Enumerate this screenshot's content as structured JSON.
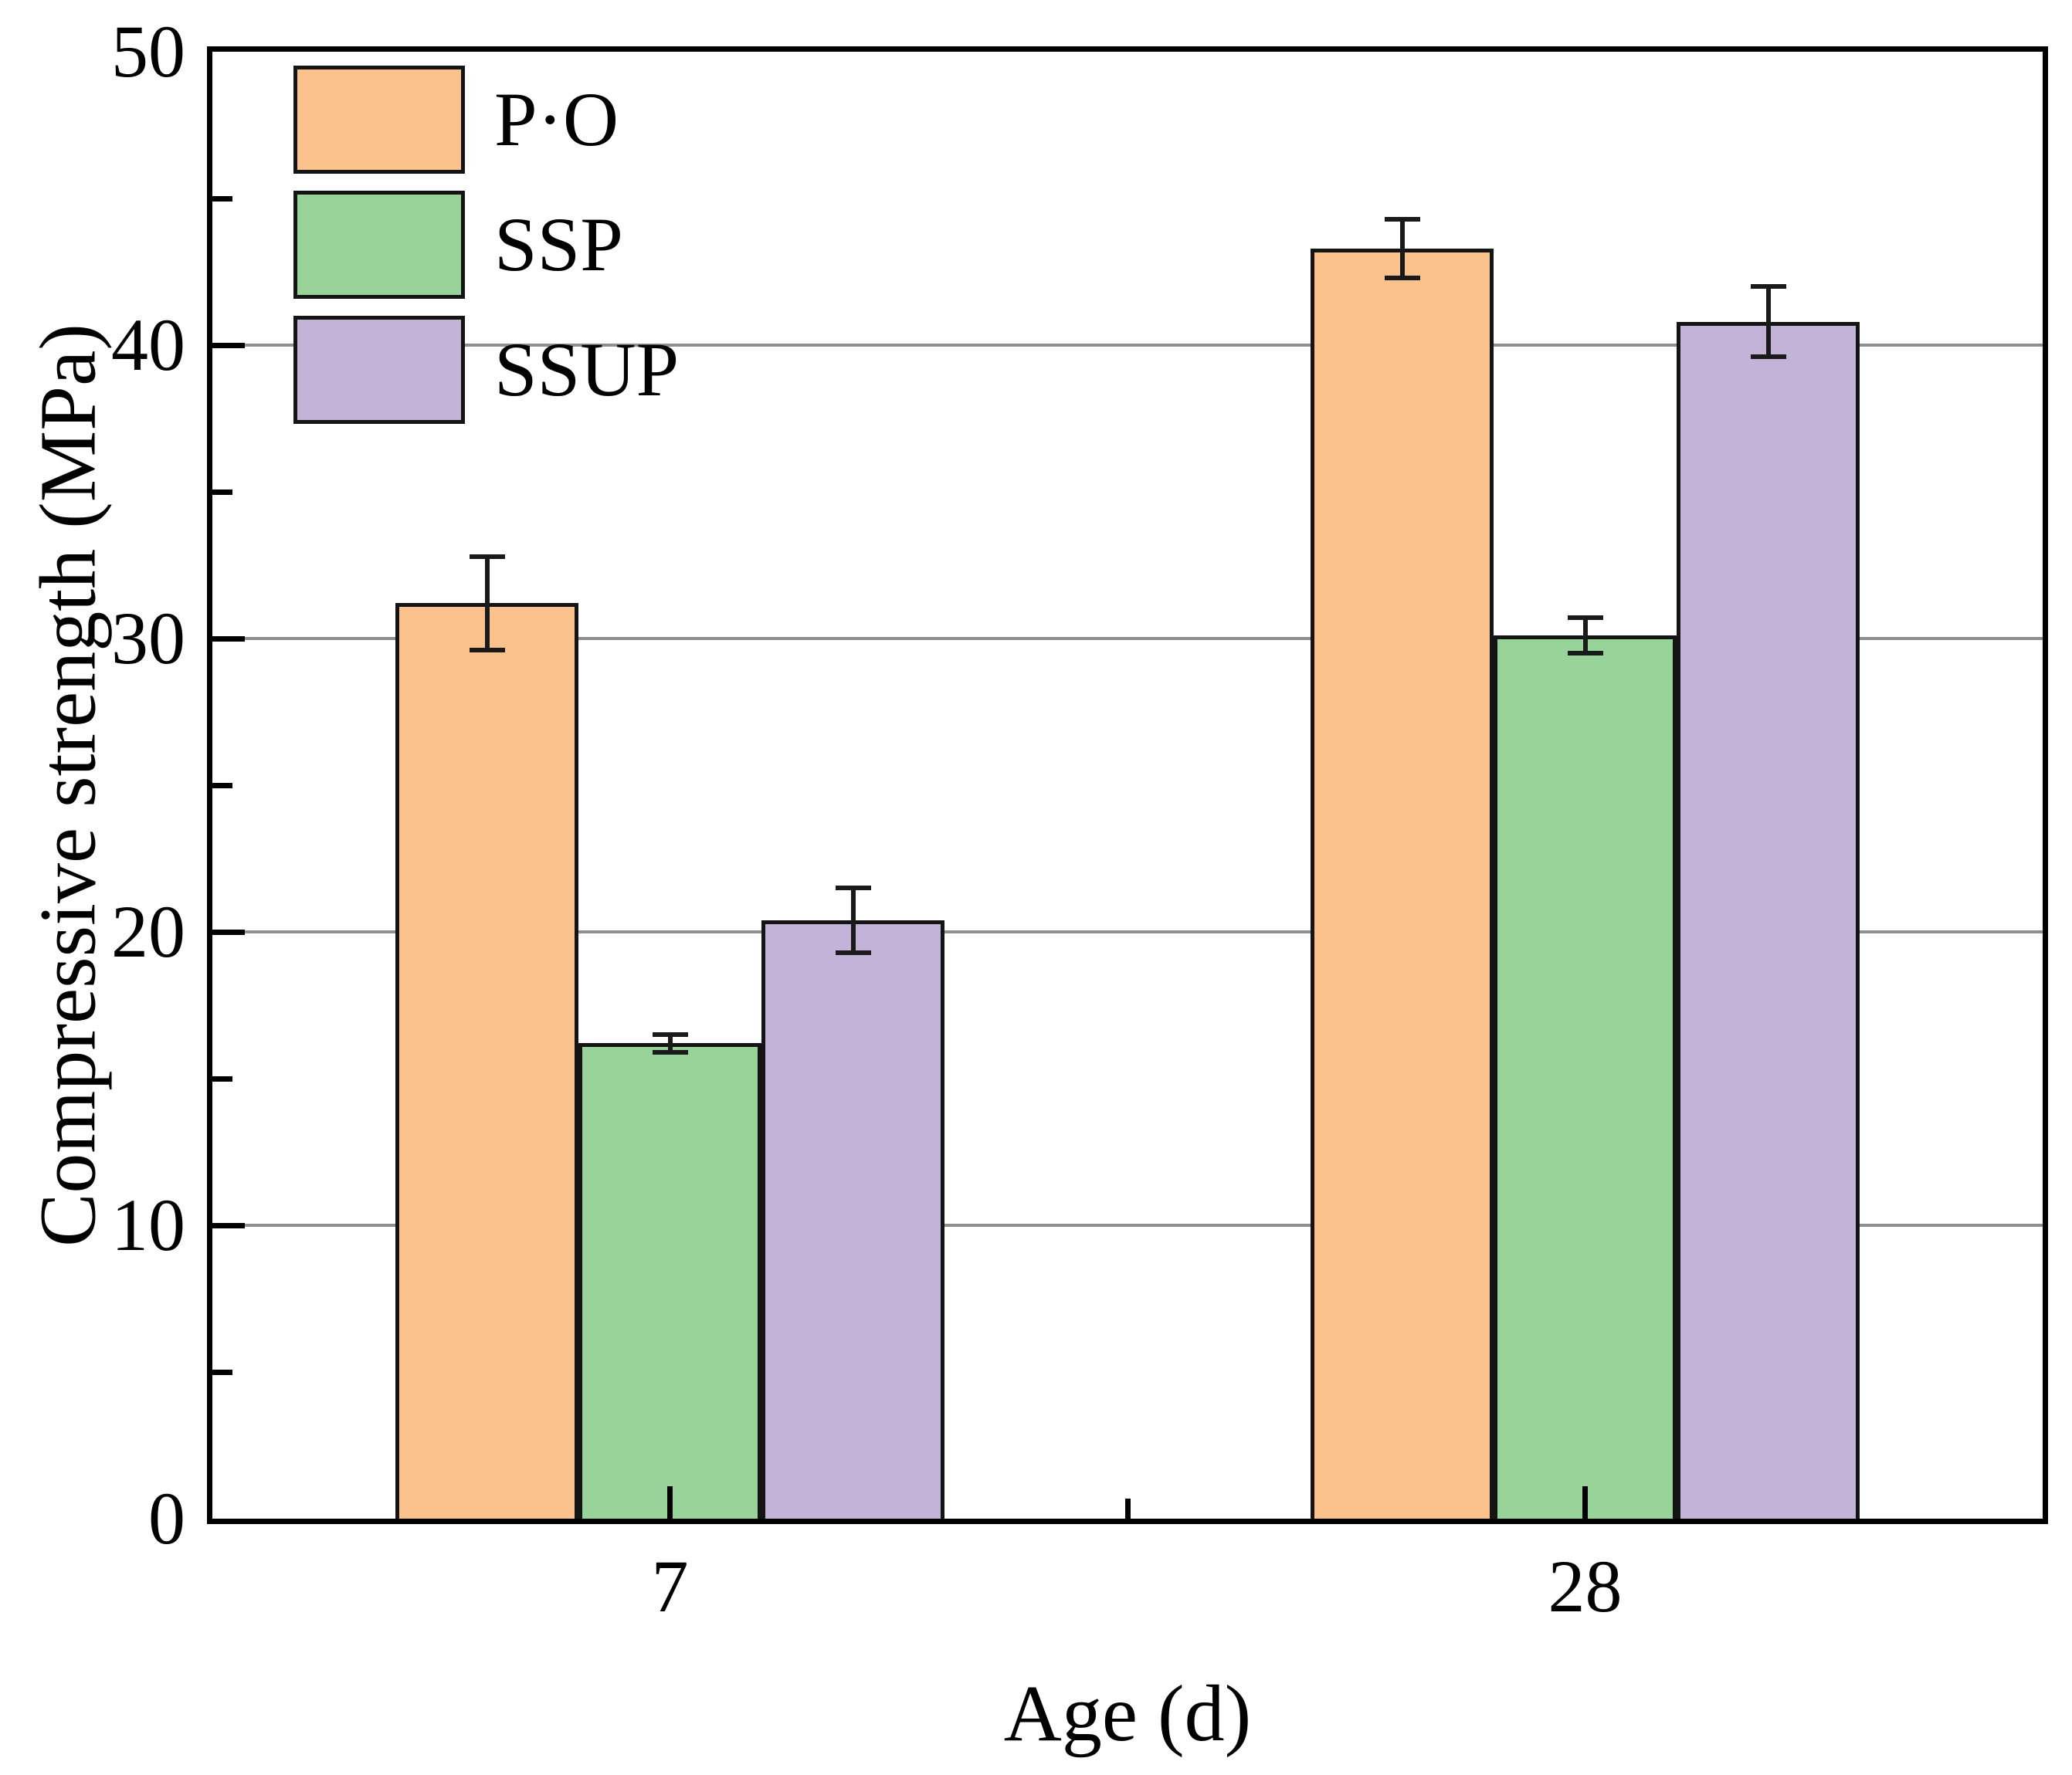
{
  "chart_data": {
    "type": "bar",
    "title": "",
    "xlabel": "Age (d)",
    "ylabel": "Compressive strength (MPa)",
    "categories": [
      "7",
      "28"
    ],
    "series": [
      {
        "name": "P·O",
        "color": "#FBC28D",
        "values": [
          31.2,
          43.3
        ],
        "errors": [
          1.6,
          1.0
        ]
      },
      {
        "name": "SSP",
        "color": "#98D39A",
        "values": [
          16.2,
          30.1
        ],
        "errors": [
          0.3,
          0.6
        ]
      },
      {
        "name": "SSUP",
        "color": "#C3B3D9",
        "values": [
          20.4,
          40.8
        ],
        "errors": [
          1.1,
          1.2
        ]
      }
    ],
    "ylim": [
      0,
      50
    ],
    "ytick_step": 10,
    "yminor_step": 5,
    "ytick_labels": [
      "0",
      "10",
      "20",
      "30",
      "40",
      "50"
    ],
    "grid": true,
    "grid_color": "#8F8F8F",
    "bar_border_color": "#141414",
    "error_bar_color": "#1A1A1A",
    "legend_position": "top-left"
  }
}
